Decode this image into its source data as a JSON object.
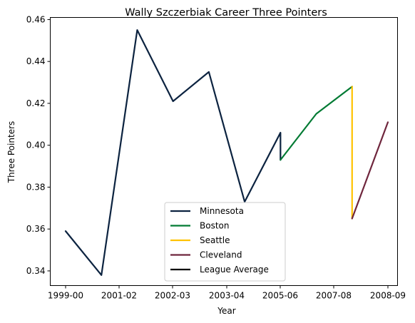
{
  "chart_data": {
    "type": "line",
    "title": "Wally Szczerbiak Career Three Pointers",
    "xlabel": "Year",
    "ylabel": "Three Pointers",
    "x_tick_labels": [
      "1999-00",
      "2001-02",
      "2002-03",
      "2003-04",
      "2005-06",
      "2007-08",
      "2008-09"
    ],
    "y_ticks": [
      0.34,
      0.36,
      0.38,
      0.4,
      0.42,
      0.44,
      0.46
    ],
    "y_tick_labels": [
      "0.34",
      "0.36",
      "0.38",
      "0.40",
      "0.42",
      "0.44",
      "0.46"
    ],
    "ylim": [
      0.333,
      0.461
    ],
    "legend_position": "lower center",
    "grid": false,
    "series": [
      {
        "name": "Minnesota",
        "color": "#0C2340",
        "points": [
          {
            "x": "1999-00",
            "y": 0.359
          },
          {
            "x": "2000-01",
            "y": 0.338
          },
          {
            "x": "2001-02",
            "y": 0.455
          },
          {
            "x": "2002-03",
            "y": 0.421
          },
          {
            "x": "2003-04",
            "y": 0.435
          },
          {
            "x": "2004-05",
            "y": 0.373
          },
          {
            "x": "2005-06",
            "y": 0.406
          },
          {
            "x": "2005-06",
            "y": 0.393
          }
        ]
      },
      {
        "name": "Boston",
        "color": "#007A33",
        "points": [
          {
            "x": "2005-06",
            "y": 0.393
          },
          {
            "x": "2006-07",
            "y": 0.415
          },
          {
            "x": "2007-08",
            "y": 0.428
          }
        ]
      },
      {
        "name": "Seattle",
        "color": "#FFC200",
        "points": [
          {
            "x": "2007-08",
            "y": 0.428
          },
          {
            "x": "2007-08",
            "y": 0.365
          }
        ]
      },
      {
        "name": "Cleveland",
        "color": "#6F263D",
        "points": [
          {
            "x": "2007-08",
            "y": 0.365
          },
          {
            "x": "2008-09",
            "y": 0.411
          }
        ]
      },
      {
        "name": "League Average",
        "color": "#000000",
        "points": []
      }
    ]
  }
}
